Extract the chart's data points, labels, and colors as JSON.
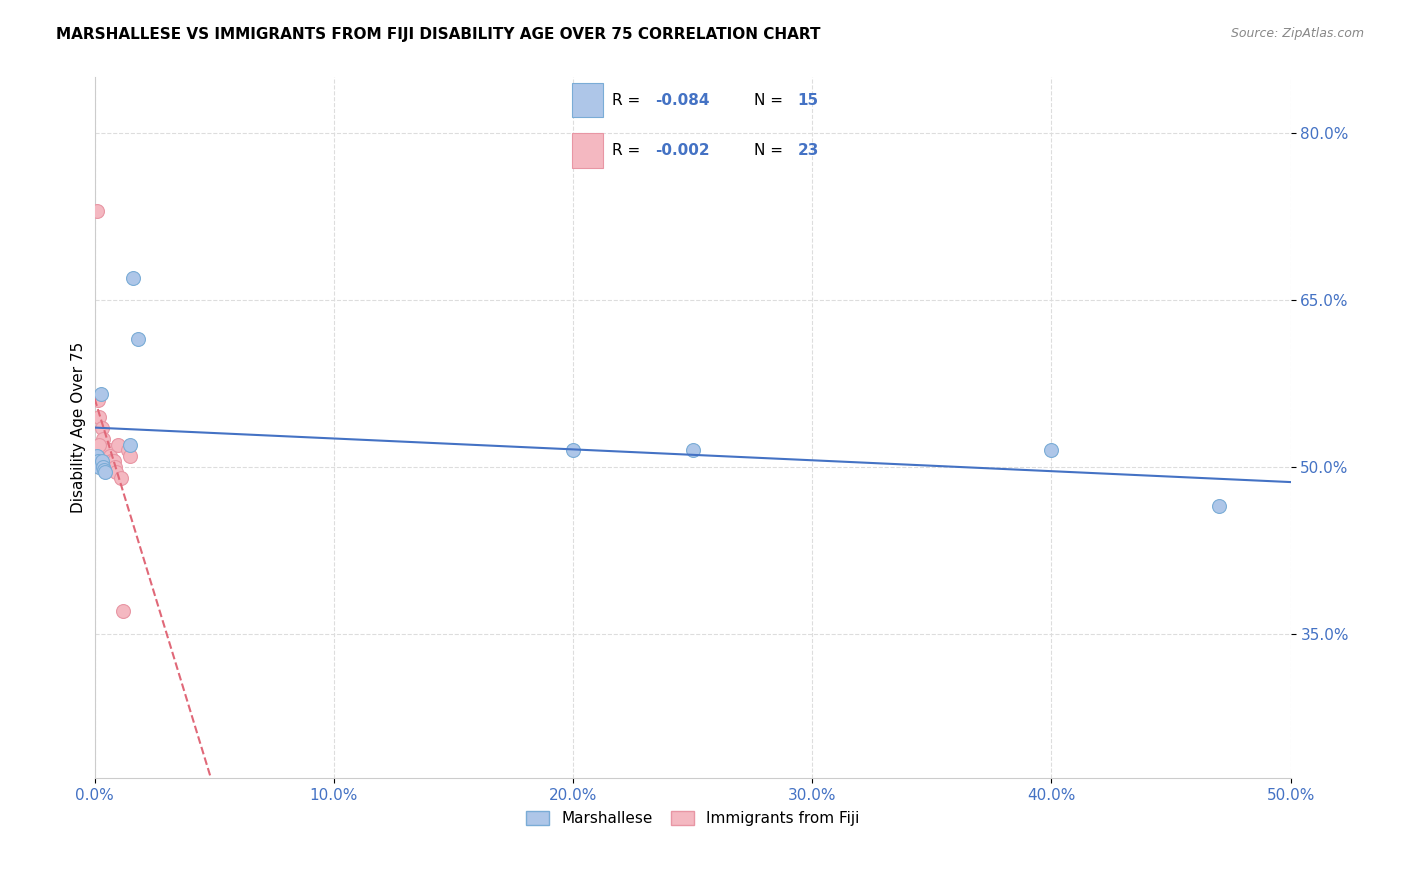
{
  "title": "MARSHALLESE VS IMMIGRANTS FROM FIJI DISABILITY AGE OVER 75 CORRELATION CHART",
  "source": "Source: ZipAtlas.com",
  "ylabel": "Disability Age Over 75",
  "xlim": [
    0.0,
    50.0
  ],
  "ylim": [
    22.0,
    85.0
  ],
  "xticks": [
    0.0,
    10.0,
    20.0,
    30.0,
    40.0,
    50.0
  ],
  "xtick_labels": [
    "0.0%",
    "10.0%",
    "20.0%",
    "30.0%",
    "40.0%",
    "50.0%"
  ],
  "yticks": [
    35.0,
    50.0,
    65.0,
    80.0
  ],
  "ytick_labels": [
    "35.0%",
    "50.0%",
    "65.0%",
    "80.0%"
  ],
  "blue_color": "#aec6e8",
  "pink_color": "#f4b8c1",
  "blue_line_color": "#4472c4",
  "pink_line_color": "#e06878",
  "blue_marker_edge": "#7aacd6",
  "pink_marker_edge": "#e896a4",
  "marshallese_x": [
    0.1,
    0.15,
    0.2,
    0.25,
    0.3,
    0.35,
    0.4,
    0.45,
    1.5,
    1.6,
    1.8,
    20.0,
    25.0,
    40.0,
    47.0
  ],
  "marshallese_y": [
    51.0,
    50.5,
    50.0,
    56.5,
    50.5,
    50.0,
    49.7,
    49.5,
    52.0,
    67.0,
    61.5,
    51.5,
    51.5,
    51.5,
    46.5
  ],
  "fiji_x": [
    0.1,
    0.15,
    0.2,
    0.25,
    0.3,
    0.35,
    0.4,
    0.45,
    0.5,
    0.6,
    0.65,
    0.7,
    0.75,
    0.8,
    0.85,
    0.9,
    1.0,
    1.1,
    1.2,
    1.4,
    1.5,
    0.18,
    0.22
  ],
  "fiji_y": [
    73.0,
    56.0,
    54.5,
    51.0,
    53.5,
    52.5,
    51.5,
    51.0,
    50.5,
    51.5,
    51.0,
    50.5,
    50.0,
    50.5,
    50.0,
    49.5,
    52.0,
    49.0,
    37.0,
    51.5,
    51.0,
    52.0,
    50.0
  ],
  "background_color": "#ffffff",
  "grid_color": "#dddddd",
  "axis_label_color": "#4472c4",
  "tick_color": "#4472c4",
  "marker_size": 100,
  "legend_blue_R": "-0.084",
  "legend_blue_N": "15",
  "legend_pink_R": "-0.002",
  "legend_pink_N": "23"
}
